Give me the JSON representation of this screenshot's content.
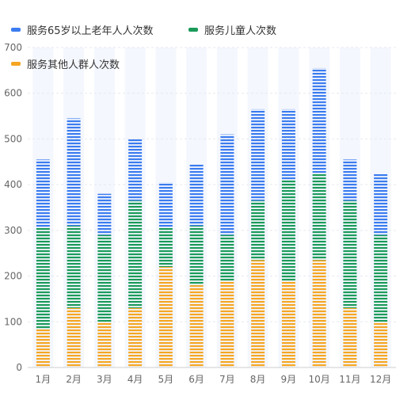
{
  "chart_data": {
    "type": "bar",
    "stacked": true,
    "categories": [
      "1月",
      "2月",
      "3月",
      "4月",
      "5月",
      "6月",
      "7月",
      "8月",
      "9月",
      "10月",
      "11月",
      "12月"
    ],
    "series": [
      {
        "name": "服务其他人群人次数",
        "color": "#F5A623",
        "values": [
          85,
          130,
          100,
          130,
          220,
          180,
          190,
          235,
          190,
          235,
          130,
          100
        ]
      },
      {
        "name": "服务儿童人次数",
        "color": "#1A9B5A",
        "values": [
          220,
          180,
          190,
          235,
          85,
          130,
          100,
          130,
          220,
          190,
          235,
          190
        ]
      },
      {
        "name": "服务65岁以上老年人人次数",
        "color": "#3B7CF0",
        "values": [
          150,
          235,
          90,
          135,
          100,
          135,
          220,
          200,
          155,
          230,
          90,
          135
        ]
      }
    ],
    "ylim": [
      0,
      700
    ],
    "yticks": [
      0,
      100,
      200,
      300,
      400,
      500,
      600,
      700
    ],
    "grid": true,
    "legend_position": "top-left"
  },
  "legend": [
    {
      "label": "服务65岁以上老年人人次数",
      "color": "#3B7CF0"
    },
    {
      "label": "服务儿童人次数",
      "color": "#1A9B5A"
    },
    {
      "label": "服务其他人群人次数",
      "color": "#F5A623"
    }
  ]
}
